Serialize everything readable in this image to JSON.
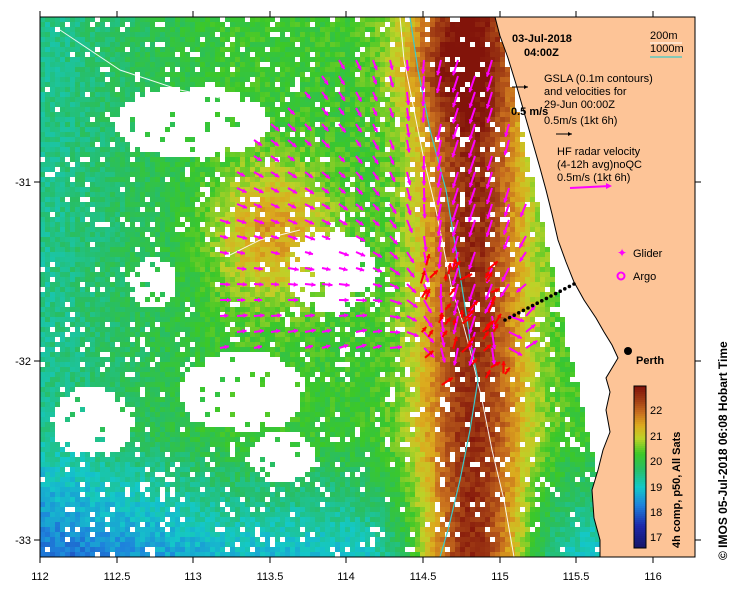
{
  "header": {
    "date": "03-Jul-2018",
    "time": "04:00Z"
  },
  "bathymetry_legend": {
    "contour_200": "200m",
    "contour_1000": "1000m",
    "contour_200_color": "#ffffff",
    "contour_1000_color": "#3ec9c9"
  },
  "gsla_legend": {
    "line1": "GSLA (0.1m contours)",
    "line2": "and velocities for",
    "line3": "29-Jun 00:00Z",
    "scale_label": "0.5m/s (1kt 6h)",
    "overlay_label": "0.5 m/s",
    "arrow_color": "#000000"
  },
  "hf_legend": {
    "line1": "HF radar velocity",
    "line2": "(4-12h avg)noQC",
    "scale_label": "0.5m/s (1kt 6h)",
    "arrow_color": "#ff00ff"
  },
  "markers": {
    "glider_label": "Glider",
    "argo_label": "Argo",
    "city_label": "Perth",
    "marker_color": "#ff00ff"
  },
  "colorbar": {
    "title": "4h comp, p50, All Sats",
    "ticks": [
      "22",
      "21",
      "20",
      "19",
      "18",
      "17"
    ],
    "range": [
      16.6,
      22.9
    ]
  },
  "axes": {
    "x_ticks": [
      "112",
      "112.5",
      "113",
      "113.5",
      "114",
      "114.5",
      "115",
      "115.5",
      "116"
    ],
    "y_ticks": [
      "-31",
      "-32",
      "-33"
    ],
    "xlim": [
      112,
      116.3
    ],
    "ylim": [
      -33.1,
      -30.1
    ]
  },
  "credit": "© IMOS 05-Jul-2018 06:08 Hobart Time",
  "colors": {
    "land": "#fdc497",
    "ocean_background": "#ffffff",
    "radar_vectors": "#ff00ff",
    "glider_track": "#000000",
    "current_vectors": "#ff0000"
  }
}
